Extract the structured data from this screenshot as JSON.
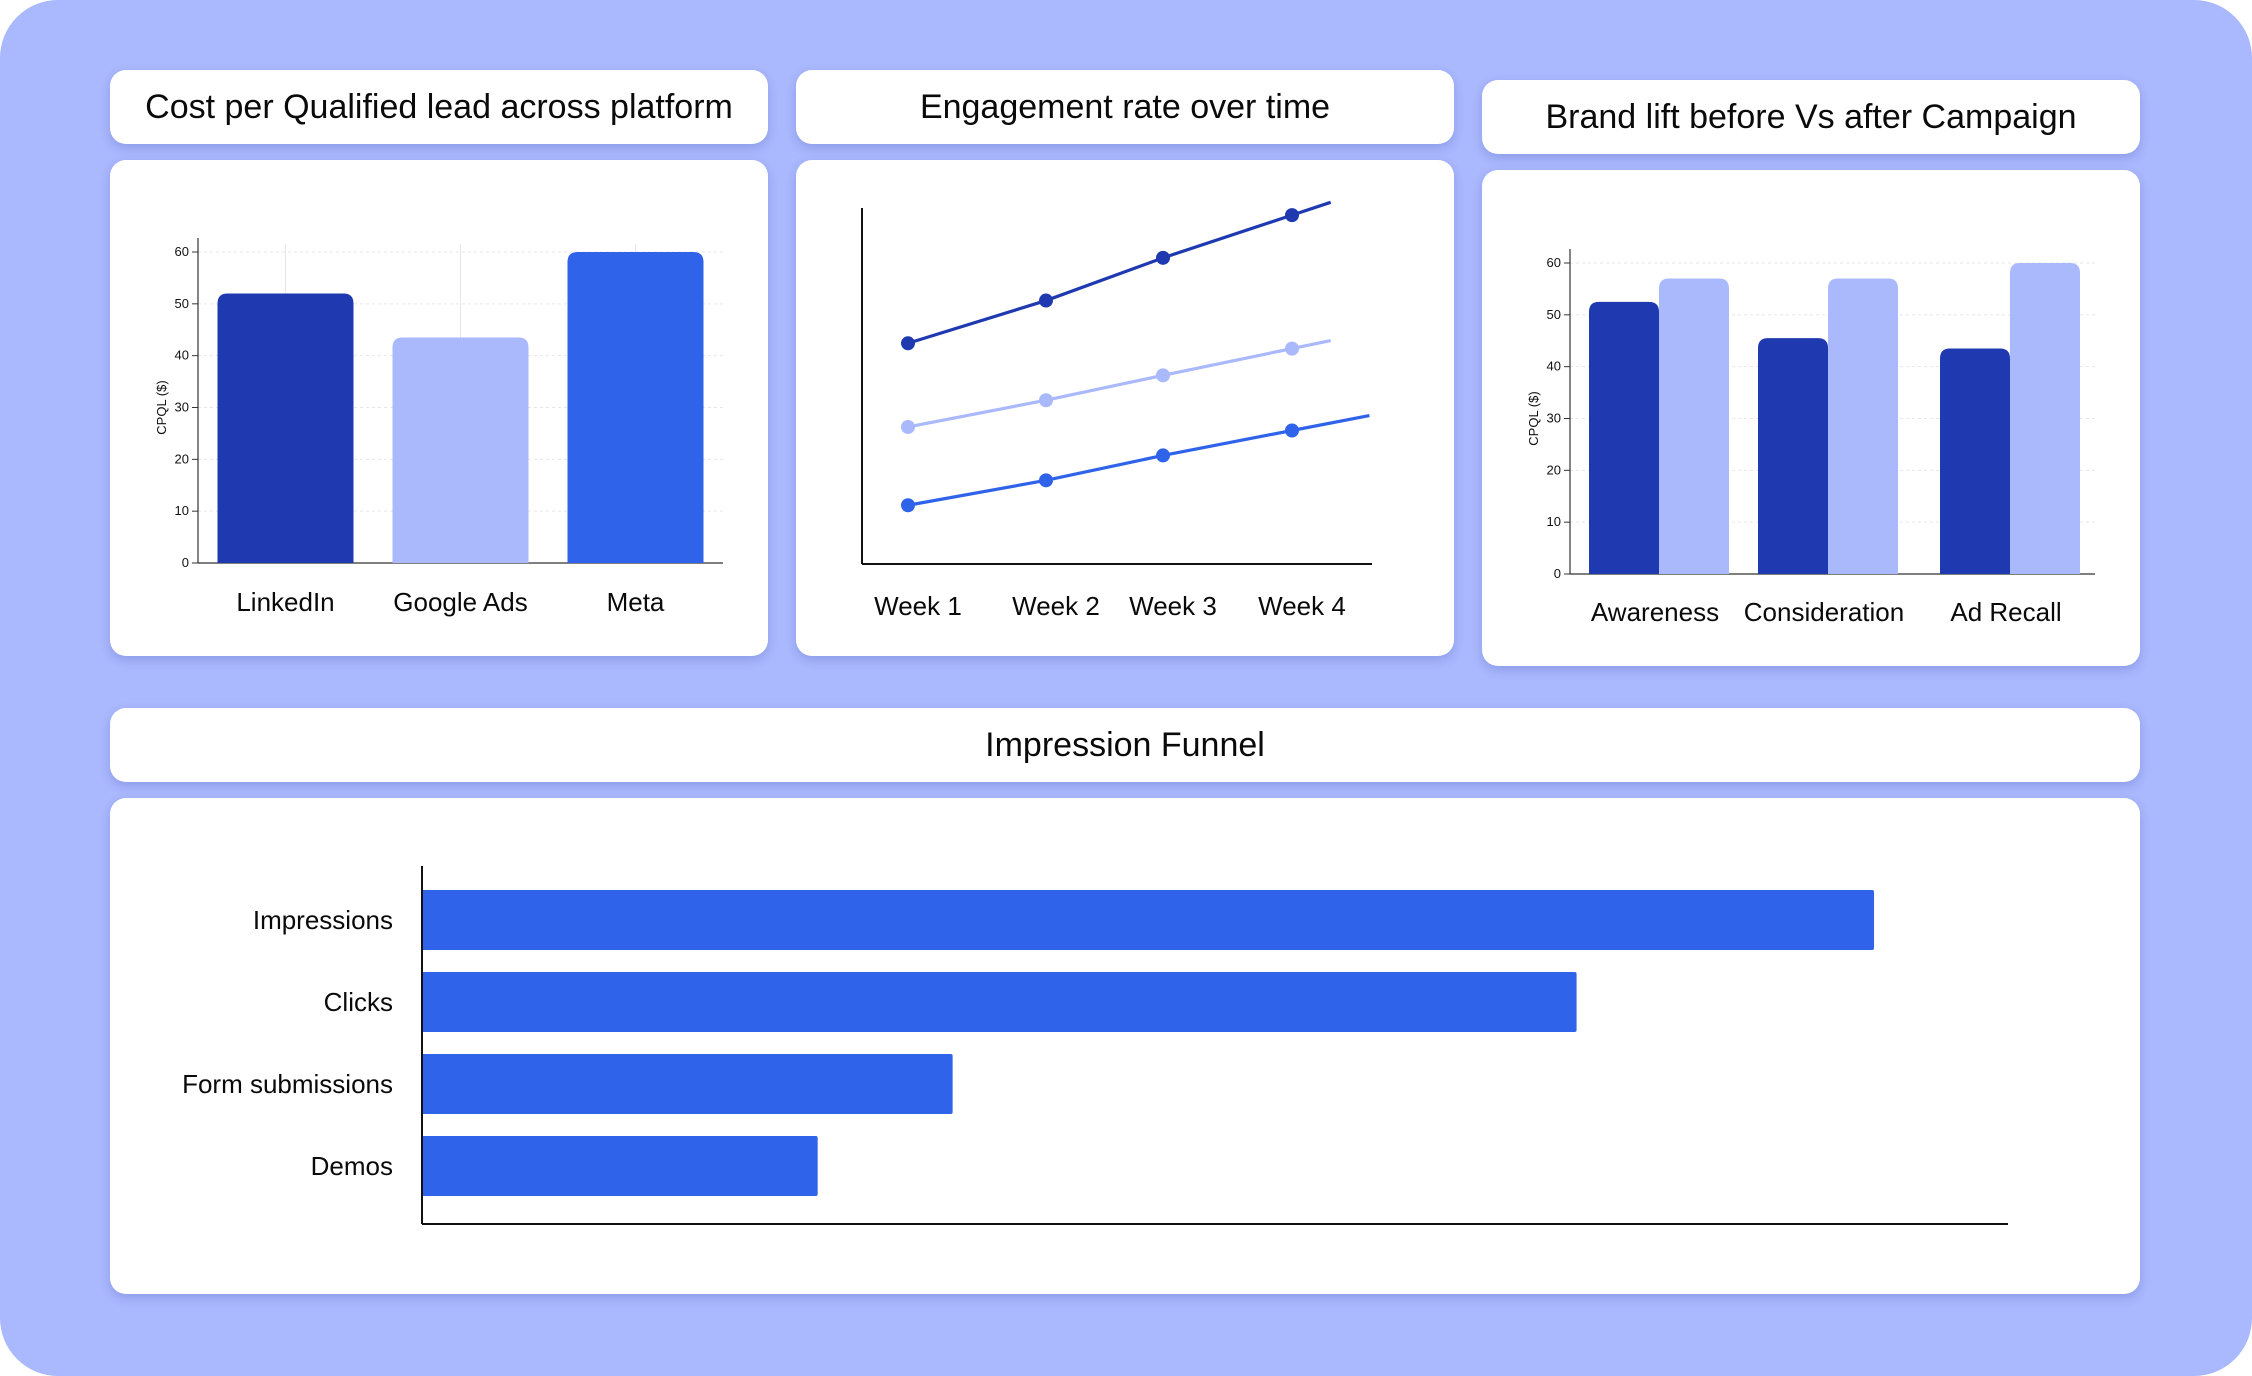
{
  "colors": {
    "background": "#aab8fd",
    "dark_blue": "#1f3ab0",
    "light_blue": "#a9b9fb",
    "bright_blue": "#2e63ea",
    "card": "#ffffff"
  },
  "titles": {
    "cpql": "Cost per Qualified lead across platform",
    "engagement": "Engagement rate over time",
    "brand_lift": "Brand lift before Vs after Campaign",
    "funnel": "Impression Funnel"
  },
  "chart_data": [
    {
      "id": "cpql",
      "type": "bar",
      "title": "Cost per Qualified lead across platform",
      "ylabel": "CPQL ($)",
      "xlabel": "",
      "ylim": [
        0,
        60
      ],
      "yticks": [
        "0",
        "10",
        "20",
        "30",
        "40",
        "50",
        "60"
      ],
      "grid": true,
      "categories": [
        "LinkedIn",
        "Google Ads",
        "Meta"
      ],
      "values": [
        52,
        43.5,
        60
      ],
      "colors": [
        "#1f3ab0",
        "#a9b9fb",
        "#2e63ea"
      ]
    },
    {
      "id": "engagement",
      "type": "line",
      "title": "Engagement rate over time",
      "xlabel": "",
      "ylabel": "",
      "grid": false,
      "categories": [
        "Week 1",
        "Week 2",
        "Week 3",
        "Week 4"
      ],
      "ylim": [
        0,
        100
      ],
      "series": [
        {
          "values": [
            62,
            74,
            86,
            98
          ],
          "color": "#1f3ab0"
        },
        {
          "values": [
            38.5,
            46,
            53,
            60.5
          ],
          "color": "#a9b9fb"
        },
        {
          "values": [
            16.5,
            23.5,
            30.5,
            37.5
          ],
          "color": "#2e63ea"
        }
      ]
    },
    {
      "id": "brand_lift",
      "type": "bar",
      "title": "Brand lift before Vs after Campaign",
      "ylabel": "CPQL ($)",
      "xlabel": "",
      "ylim": [
        0,
        60
      ],
      "yticks": [
        "0",
        "10",
        "20",
        "30",
        "40",
        "50",
        "60"
      ],
      "grid": true,
      "categories": [
        "Awareness",
        "Consideration",
        "Ad Recall"
      ],
      "series": [
        {
          "values": [
            52.5,
            45.5,
            43.5
          ],
          "color": "#1f3ab0"
        },
        {
          "values": [
            57,
            57,
            60
          ],
          "color": "#a9b9fb"
        }
      ]
    },
    {
      "id": "funnel",
      "type": "bar",
      "orientation": "horizontal",
      "title": "Impression Funnel",
      "xlabel": "",
      "ylabel": "",
      "grid": false,
      "categories": [
        "Impressions",
        "Clicks",
        "Form submissions",
        "Demos"
      ],
      "values": [
        100,
        79.5,
        36.5,
        27.2
      ],
      "xlim": [
        0,
        109.3
      ],
      "color": "#2e63ea"
    }
  ]
}
